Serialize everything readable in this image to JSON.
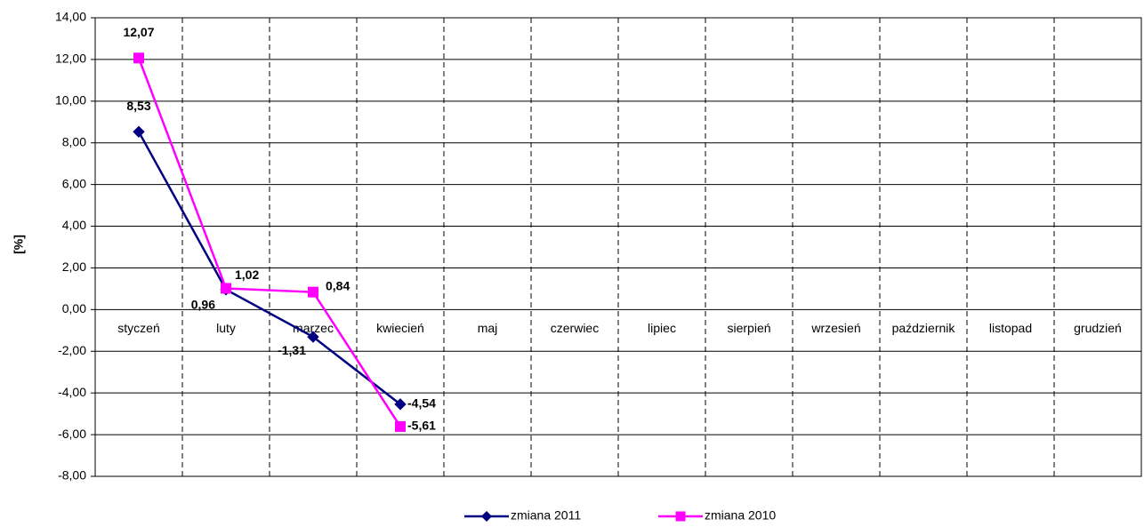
{
  "chart_data": {
    "type": "line",
    "y_label": "[%]",
    "categories": [
      "styczeń",
      "luty",
      "marzec",
      "kwiecień",
      "maj",
      "czerwiec",
      "lipiec",
      "sierpień",
      "wrzesień",
      "październik",
      "listopad",
      "grudzień"
    ],
    "series": [
      {
        "name": "zmiana 2011",
        "color": "#000080",
        "marker": "diamond",
        "values": [
          8.53,
          0.96,
          -1.31,
          -4.54,
          null,
          null,
          null,
          null,
          null,
          null,
          null,
          null
        ],
        "value_labels": [
          "8,53",
          "0,96",
          "-1,31",
          "-4,54",
          null,
          null,
          null,
          null,
          null,
          null,
          null,
          null
        ]
      },
      {
        "name": "zmiana 2010",
        "color": "#ff00ff",
        "marker": "square",
        "values": [
          12.07,
          1.02,
          0.84,
          -5.61,
          null,
          null,
          null,
          null,
          null,
          null,
          null,
          null
        ],
        "value_labels": [
          "12,07",
          "1,02",
          "0,84",
          "-5,61",
          null,
          null,
          null,
          null,
          null,
          null,
          null,
          null
        ]
      }
    ],
    "ylim": [
      -8,
      14
    ],
    "yticks": [
      {
        "value": -8,
        "label": "-8,00"
      },
      {
        "value": -6,
        "label": "-6,00"
      },
      {
        "value": -4,
        "label": "-4,00"
      },
      {
        "value": -2,
        "label": "-2,00"
      },
      {
        "value": 0,
        "label": "0,00"
      },
      {
        "value": 2,
        "label": "2,00"
      },
      {
        "value": 4,
        "label": "4,00"
      },
      {
        "value": 6,
        "label": "6,00"
      },
      {
        "value": 8,
        "label": "8,00"
      },
      {
        "value": 10,
        "label": "10,00"
      },
      {
        "value": 12,
        "label": "12,00"
      },
      {
        "value": 14,
        "label": "14,00"
      }
    ],
    "grid": true,
    "legend": "bottom"
  }
}
